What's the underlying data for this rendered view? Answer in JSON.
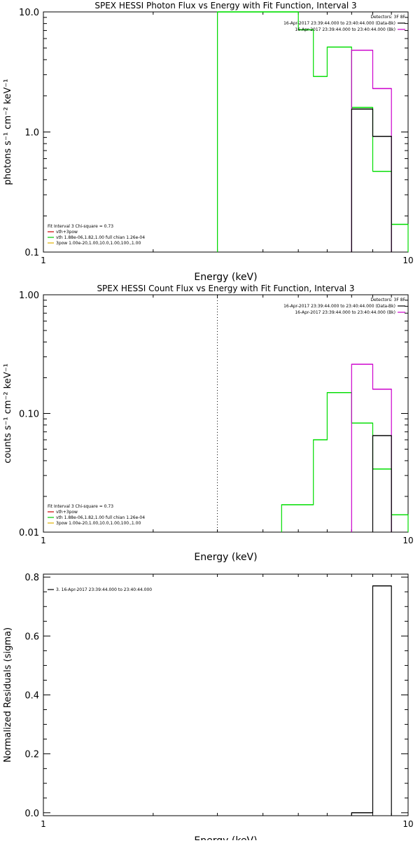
{
  "chart_data": [
    {
      "type": "line",
      "title": "SPEX HESSI Photon Flux vs Energy with Fit Function, Interval 3",
      "xlabel": "Energy (keV)",
      "ylabel": "photons s⁻¹ cm⁻² keV⁻¹",
      "xscale": "log",
      "yscale": "log",
      "xlim": [
        1,
        10
      ],
      "ylim": [
        0.1,
        10
      ],
      "x_ticks": [
        {
          "v": 1,
          "label": "1"
        },
        {
          "v": 10,
          "label": "10"
        }
      ],
      "y_ticks": [
        {
          "v": 0.1,
          "label": "0.1"
        },
        {
          "v": 1,
          "label": "1.0"
        },
        {
          "v": 10,
          "label": "10.0"
        }
      ],
      "vline": {
        "x": 3.0,
        "style": "solid",
        "color": "#006400"
      },
      "legend_right": {
        "header": "Detectors: 3F 8F",
        "entries": [
          {
            "label": "16-Apr-2017 23:39:44.000 to 23:40:44.000 (Data-Bk)",
            "color": "#000000"
          },
          {
            "label": "16-Apr-2017 23:39:44.000 to 23:40:44.000 (Bk)",
            "color": "#cc00cc"
          }
        ]
      },
      "legend_left": {
        "header": "Fit Interval 3   Chi-square = 0.73",
        "entries": [
          {
            "label": "vth+3pow",
            "color": "#cc0000"
          },
          {
            "label": "vth 1.88e-06,1.82,1.00  full chian 1.26e-04",
            "color": "#00cc00"
          },
          {
            "label": "3pow 1.00e-20,1.00,10.0,1.00,100.,1.00",
            "color": "#e0b000"
          }
        ]
      },
      "series": [
        {
          "color": "#00dd00",
          "edges": [
            3.0,
            4.5,
            5.0,
            5.5,
            6.0,
            7.0,
            8.0,
            9.0,
            10.0
          ],
          "values": [
            10.0,
            10.0,
            7.1,
            2.9,
            5.1,
            1.6,
            0.47,
            0.17
          ]
        },
        {
          "color": "#cc00cc",
          "edges": [
            7.0,
            8.0,
            9.0
          ],
          "values": [
            4.8,
            2.3
          ]
        },
        {
          "color": "#000000",
          "edges": [
            7.0,
            8.0,
            9.0
          ],
          "values": [
            1.55,
            0.92
          ]
        }
      ]
    },
    {
      "type": "line",
      "title": "SPEX HESSI Count Flux vs Energy with Fit Function, Interval 3",
      "xlabel": "Energy (keV)",
      "ylabel": "counts s⁻¹ cm⁻² keV⁻¹",
      "xscale": "log",
      "yscale": "log",
      "xlim": [
        1,
        10
      ],
      "ylim": [
        0.01,
        1
      ],
      "x_ticks": [
        {
          "v": 1,
          "label": "1"
        },
        {
          "v": 10,
          "label": "10"
        }
      ],
      "y_ticks": [
        {
          "v": 0.01,
          "label": "0.01"
        },
        {
          "v": 0.1,
          "label": "0.10"
        },
        {
          "v": 1,
          "label": "1.00"
        }
      ],
      "vline": {
        "x": 3.0,
        "style": "dotted",
        "color": "#000000"
      },
      "legend_right": {
        "header": "Detectors: 3F 8F",
        "entries": [
          {
            "label": "16-Apr-2017 23:39:44.000 to 23:40:44.000 (Data-Bk)",
            "color": "#000000"
          },
          {
            "label": "16-Apr-2017 23:39:44.000 to 23:40:44.000 (Bk)",
            "color": "#cc00cc"
          }
        ]
      },
      "legend_left": {
        "header": "Fit Interval 3   Chi-square = 0.73",
        "entries": [
          {
            "label": "vth+3pow",
            "color": "#cc0000"
          },
          {
            "label": "vth 1.88e-06,1.82,1.00  full chian 1.26e-04",
            "color": "#00cc00"
          },
          {
            "label": "3pow 1.00e-20,1.00,10.0,1.00,100.,1.00",
            "color": "#e0b000"
          }
        ]
      },
      "series": [
        {
          "color": "#00dd00",
          "edges": [
            4.5,
            5.5,
            6.0,
            7.0,
            8.0,
            9.0,
            10.0
          ],
          "values": [
            0.017,
            0.06,
            0.15,
            0.083,
            0.034,
            0.014
          ]
        },
        {
          "color": "#cc00cc",
          "edges": [
            7.0,
            8.0,
            9.0
          ],
          "values": [
            0.26,
            0.16
          ]
        },
        {
          "color": "#000000",
          "edges": [
            8.0,
            9.0
          ],
          "values": [
            0.065
          ]
        }
      ]
    },
    {
      "type": "line",
      "title": "",
      "xlabel": "Energy (keV)",
      "ylabel": "Normalized Residuals (sigma)",
      "xscale": "log",
      "yscale": "linear",
      "xlim": [
        1,
        10
      ],
      "ylim": [
        -0.01,
        0.81
      ],
      "x_ticks": [
        {
          "v": 1,
          "label": "1"
        },
        {
          "v": 10,
          "label": "10"
        }
      ],
      "y_ticks": [
        {
          "v": 0,
          "label": "0.0"
        },
        {
          "v": 0.2,
          "label": "0.2"
        },
        {
          "v": 0.4,
          "label": "0.4"
        },
        {
          "v": 0.6,
          "label": "0.6"
        },
        {
          "v": 0.8,
          "label": "0.8"
        }
      ],
      "legend_left": {
        "header": "",
        "entries": [
          {
            "label": "3. 16-Apr-2017 23:39:44.000 to 23:40:44.000",
            "color": "#000000"
          }
        ]
      },
      "series": [
        {
          "color": "#000000",
          "edges": [
            7.0,
            8.0,
            9.0
          ],
          "values": [
            0.0,
            0.77
          ]
        }
      ]
    }
  ]
}
